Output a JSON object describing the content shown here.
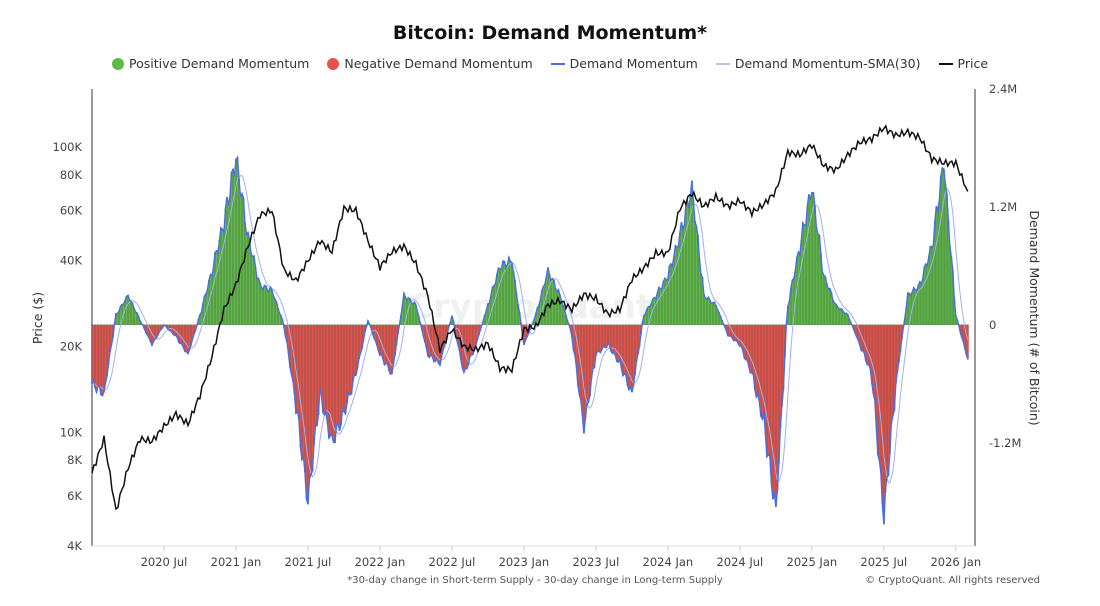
{
  "chart_data": {
    "type": "bar+line",
    "title": "Bitcoin: Demand Momentum*",
    "footnote": "*30-day change in Short-term Supply - 30-day change in Long-term Supply",
    "copyright": "© CryptoQuant. All rights reserved",
    "watermark": "CryptoQuant",
    "legend": [
      {
        "label": "Positive Demand Momentum",
        "color": "#5dbb46",
        "kind": "dot"
      },
      {
        "label": "Negative Demand Momentum",
        "color": "#e5534b",
        "kind": "dot"
      },
      {
        "label": "Demand Momentum",
        "color": "#4a6ee0",
        "kind": "line"
      },
      {
        "label": "Demand Momentum-SMA(30)",
        "color": "#b3c3f2",
        "kind": "line"
      },
      {
        "label": "Price",
        "color": "#111111",
        "kind": "line"
      }
    ],
    "legend_position": "top",
    "ylabel_left": "Price ($)",
    "ylabel_right": "Demand Momentum (# of Bitcoin)",
    "left_axis": {
      "scale": "log",
      "range": [
        4000,
        160000
      ],
      "ticks": [
        4000,
        6000,
        8000,
        10000,
        20000,
        40000,
        60000,
        80000,
        100000
      ],
      "tick_labels": [
        "4K",
        "6K",
        "8K",
        "10K",
        "20K",
        "40K",
        "60K",
        "80K",
        "100K"
      ]
    },
    "right_axis": {
      "scale": "linear",
      "range": [
        -2250000,
        2400000
      ],
      "ticks": [
        -1200000,
        0,
        1200000,
        2400000
      ],
      "tick_labels": [
        "-1.2M",
        "0",
        "1.2M",
        "2.4M"
      ]
    },
    "x_ticks": [
      "2020 Jul",
      "2021 Jan",
      "2021 Jul",
      "2022 Jan",
      "2022 Jul",
      "2023 Jan",
      "2023 Jul",
      "2024 Jan",
      "2024 Jul",
      "2025 Jan",
      "2025 Jul",
      "2026 Jan"
    ],
    "x_tick_dates": [
      "2020-07",
      "2021-01",
      "2021-07",
      "2022-01",
      "2022-07",
      "2023-01",
      "2023-07",
      "2024-01",
      "2024-07",
      "2025-01",
      "2025-07",
      "2026-01"
    ],
    "x_range": [
      "2020-01",
      "2026-02"
    ],
    "dates": [
      "2020-01",
      "2020-02",
      "2020-03",
      "2020-04",
      "2020-05",
      "2020-06",
      "2020-07",
      "2020-08",
      "2020-09",
      "2020-10",
      "2020-11",
      "2020-12",
      "2021-01",
      "2021-02",
      "2021-03",
      "2021-04",
      "2021-05",
      "2021-06",
      "2021-07",
      "2021-08",
      "2021-09",
      "2021-10",
      "2021-11",
      "2021-12",
      "2022-01",
      "2022-02",
      "2022-03",
      "2022-04",
      "2022-05",
      "2022-06",
      "2022-07",
      "2022-08",
      "2022-09",
      "2022-10",
      "2022-11",
      "2022-12",
      "2023-01",
      "2023-02",
      "2023-03",
      "2023-04",
      "2023-05",
      "2023-06",
      "2023-07",
      "2023-08",
      "2023-09",
      "2023-10",
      "2023-11",
      "2023-12",
      "2024-01",
      "2024-02",
      "2024-03",
      "2024-04",
      "2024-05",
      "2024-06",
      "2024-07",
      "2024-08",
      "2024-09",
      "2024-10",
      "2024-11",
      "2024-12",
      "2025-01",
      "2025-02",
      "2025-03",
      "2025-04",
      "2025-05",
      "2025-06",
      "2025-07",
      "2025-08",
      "2025-09",
      "2025-10",
      "2025-11",
      "2025-12",
      "2026-01",
      "2026-02"
    ],
    "price": [
      7200,
      9500,
      5300,
      7500,
      9500,
      9300,
      10500,
      11600,
      10700,
      13500,
      18500,
      27000,
      33000,
      45000,
      58000,
      60000,
      37000,
      34000,
      40000,
      47000,
      43000,
      61000,
      60000,
      47000,
      38000,
      43000,
      45000,
      39000,
      30000,
      19500,
      23000,
      20000,
      19500,
      20500,
      16800,
      16600,
      23000,
      23500,
      28000,
      29000,
      27000,
      30500,
      29500,
      26000,
      27000,
      34500,
      37700,
      42500,
      42500,
      61000,
      69000,
      62000,
      67000,
      62000,
      65000,
      59000,
      63000,
      70000,
      96000,
      94000,
      102000,
      86000,
      83000,
      94000,
      104000,
      107000,
      117000,
      110000,
      113000,
      108000,
      91000,
      88000,
      88000,
      70000
    ],
    "demand_momentum": [
      -600000,
      -700000,
      100000,
      300000,
      50000,
      -200000,
      0,
      -120000,
      -300000,
      100000,
      550000,
      1050000,
      1700000,
      900000,
      400000,
      350000,
      0,
      -800000,
      -1800000,
      -700000,
      -1200000,
      -900000,
      -500000,
      50000,
      -300000,
      -500000,
      300000,
      200000,
      -300000,
      -400000,
      100000,
      -500000,
      -200000,
      200000,
      600000,
      650000,
      -200000,
      100000,
      550000,
      300000,
      -100000,
      -1050000,
      -300000,
      -200000,
      -400000,
      -700000,
      100000,
      300000,
      500000,
      900000,
      1400000,
      300000,
      200000,
      -100000,
      -200000,
      -500000,
      -1000000,
      -1900000,
      200000,
      800000,
      1400000,
      500000,
      200000,
      100000,
      -200000,
      -500000,
      -1950000,
      -600000,
      300000,
      400000,
      800000,
      1650000,
      100000,
      -350000
    ]
  }
}
